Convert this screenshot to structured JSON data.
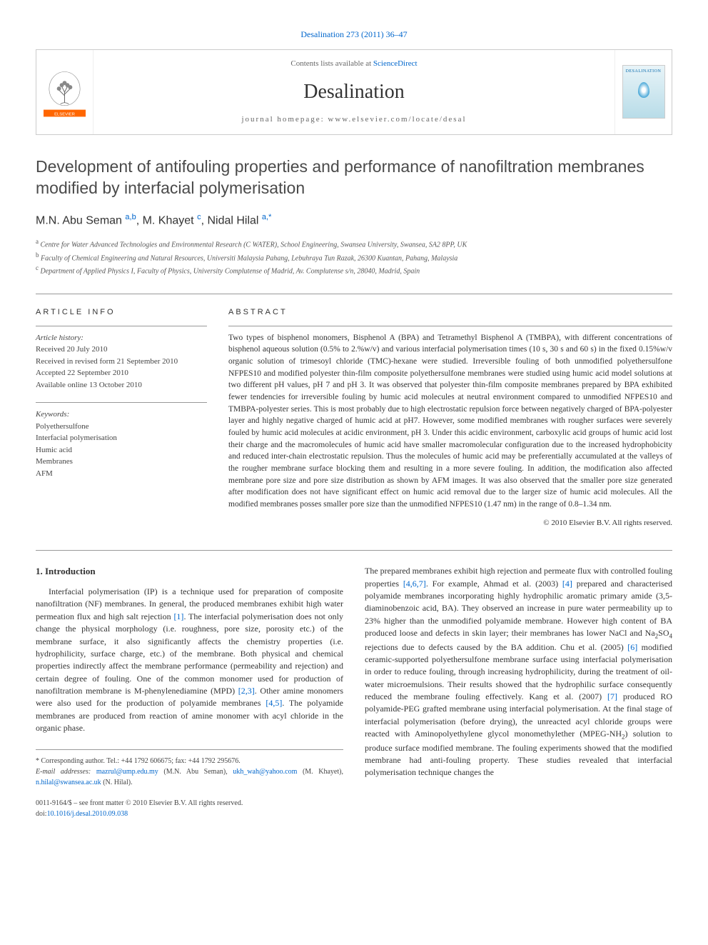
{
  "citation": "Desalination 273 (2011) 36–47",
  "header": {
    "contents_prefix": "Contents lists available at ",
    "contents_link": "ScienceDirect",
    "journal": "Desalination",
    "homepage_prefix": "journal homepage: ",
    "homepage": "www.elsevier.com/locate/desal",
    "cover_label": "DESALINATION"
  },
  "title": "Development of antifouling properties and performance of nanofiltration membranes modified by interfacial polymerisation",
  "authors_html": "M.N. Abu Seman <sup>a,b</sup>, M. Khayet <sup>c</sup>, Nidal Hilal <sup>a,*</sup>",
  "affiliations": [
    {
      "sup": "a",
      "text": "Centre for Water Advanced Technologies and Environmental Research (C WATER), School Engineering, Swansea University, Swansea, SA2 8PP, UK"
    },
    {
      "sup": "b",
      "text": "Faculty of Chemical Engineering and Natural Resources, Universiti Malaysia Pahang, Lebuhraya Tun Razak, 26300 Kuantan, Pahang, Malaysia"
    },
    {
      "sup": "c",
      "text": "Department of Applied Physics I, Faculty of Physics, University Complutense of Madrid, Av. Complutense s/n, 28040, Madrid, Spain"
    }
  ],
  "article_info": {
    "label": "ARTICLE INFO",
    "history_heading": "Article history:",
    "history": [
      "Received 20 July 2010",
      "Received in revised form 21 September 2010",
      "Accepted 22 September 2010",
      "Available online 13 October 2010"
    ],
    "keywords_heading": "Keywords:",
    "keywords": [
      "Polyethersulfone",
      "Interfacial polymerisation",
      "Humic acid",
      "Membranes",
      "AFM"
    ]
  },
  "abstract": {
    "label": "ABSTRACT",
    "text": "Two types of bisphenol monomers, Bisphenol A (BPA) and Tetramethyl Bisphenol A (TMBPA), with different concentrations of bisphenol aqueous solution (0.5% to 2.%w/v) and various interfacial polymerisation times (10 s, 30 s and 60 s) in the fixed 0.15%w/v organic solution of trimesoyl chloride (TMC)-hexane were studied. Irreversible fouling of both unmodified polyethersulfone NFPES10 and modified polyester thin-film composite polyethersulfone membranes were studied using humic acid model solutions at two different pH values, pH 7 and pH 3. It was observed that polyester thin-film composite membranes prepared by BPA exhibited fewer tendencies for irreversible fouling by humic acid molecules at neutral environment compared to unmodified NFPES10 and TMBPA-polyester series. This is most probably due to high electrostatic repulsion force between negatively charged of BPA-polyester layer and highly negative charged of humic acid at pH7. However, some modified membranes with rougher surfaces were severely fouled by humic acid molecules at acidic environment, pH 3. Under this acidic environment, carboxylic acid groups of humic acid lost their charge and the macromolecules of humic acid have smaller macromolecular configuration due to the increased hydrophobicity and reduced inter-chain electrostatic repulsion. Thus the molecules of humic acid may be preferentially accumulated at the valleys of the rougher membrane surface blocking them and resulting in a more severe fouling. In addition, the modification also affected membrane pore size and pore size distribution as shown by AFM images. It was also observed that the smaller pore size generated after modification does not have significant effect on humic acid removal due to the larger size of humic acid molecules. All the modified membranes posses smaller pore size than the unmodified NFPES10 (1.47 nm) in the range of 0.8–1.34 nm.",
    "copyright": "© 2010 Elsevier B.V. All rights reserved."
  },
  "body": {
    "heading": "1. Introduction",
    "col1": "Interfacial polymerisation (IP) is a technique used for preparation of composite nanofiltration (NF) membranes. In general, the produced membranes exhibit high water permeation flux and high salt rejection [1]. The interfacial polymerisation does not only change the physical morphology (i.e. roughness, pore size, porosity etc.) of the membrane surface, it also significantly affects the chemistry properties (i.e. hydrophilicity, surface charge, etc.) of the membrane. Both physical and chemical properties indirectly affect the membrane performance (permeability and rejection) and certain degree of fouling. One of the common monomer used for production of nanofiltration membrane is M-phenylenediamine (MPD) [2,3]. Other amine monomers were also used for the production of polyamide membranes [4,5]. The polyamide membranes are produced from reaction of amine monomer with acyl chloride in the organic phase.",
    "col2": "The prepared membranes exhibit high rejection and permeate flux with controlled fouling properties [4,6,7]. For example, Ahmad et al. (2003) [4] prepared and characterised polyamide membranes incorporating highly hydrophilic aromatic primary amide (3,5-diaminobenzoic acid, BA). They observed an increase in pure water permeability up to 23% higher than the unmodified polyamide membrane. However high content of BA produced loose and defects in skin layer; their membranes has lower NaCl and Na₂SO₄ rejections due to defects caused by the BA addition. Chu et al. (2005) [6] modified ceramic-supported polyethersulfone membrane surface using interfacial polymerisation in order to reduce fouling, through increasing hydrophilicity, during the treatment of oil-water microemulsions. Their results showed that the hydrophilic surface consequently reduced the membrane fouling effectively. Kang et al. (2007) [7] produced RO polyamide-PEG grafted membrane using interfacial polymerisation. At the final stage of interfacial polymerisation (before drying), the unreacted acyl chloride groups were reacted with Aminopolyethylene glycol monomethylether (MPEG-NH₂) solution to produce surface modified membrane. The fouling experiments showed that the modified membrane had anti-fouling property. These studies revealed that interfacial polymerisation technique changes the"
  },
  "footnotes": {
    "corresponding": "* Corresponding author. Tel.: +44 1792 606675; fax: +44 1792 295676.",
    "emails_label": "E-mail addresses: ",
    "emails": [
      {
        "addr": "mazrul@ump.edu.my",
        "who": "(M.N. Abu Seman)"
      },
      {
        "addr": "ukh_wah@yahoo.com",
        "who": "(M. Khayet)"
      },
      {
        "addr": "n.hilal@swansea.ac.uk",
        "who": "(N. Hilal)"
      }
    ]
  },
  "footer": {
    "issn": "0011-9164/$ – see front matter © 2010 Elsevier B.V. All rights reserved.",
    "doi_label": "doi:",
    "doi": "10.1016/j.desal.2010.09.038"
  },
  "colors": {
    "link": "#0066cc",
    "text": "#333333",
    "border": "#999999",
    "elsevier_orange": "#ff6600"
  }
}
